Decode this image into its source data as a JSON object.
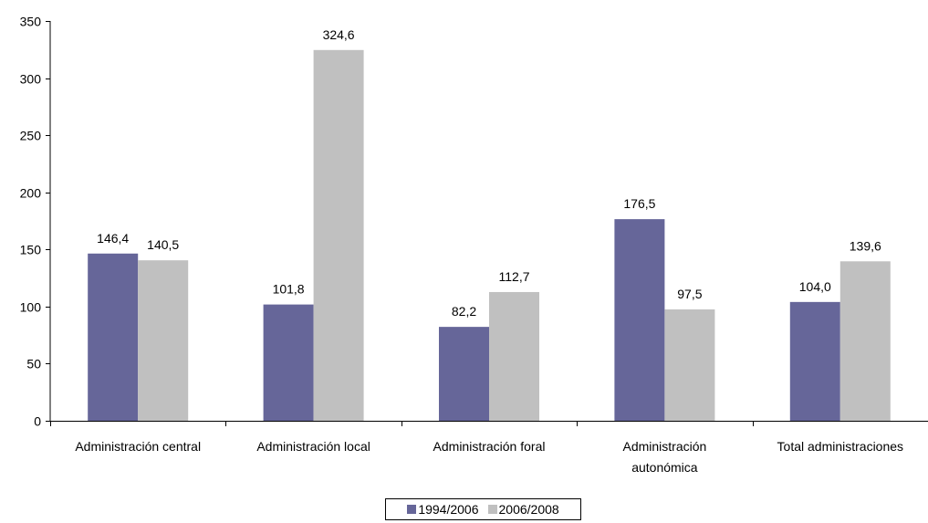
{
  "chart_data": {
    "type": "bar",
    "title": "",
    "xlabel": "",
    "ylabel": "",
    "ylim": [
      0,
      350
    ],
    "yticks": [
      0,
      50,
      100,
      150,
      200,
      250,
      300,
      350
    ],
    "grid": false,
    "legend_position": "bottom",
    "categories": [
      [
        "Administración central"
      ],
      [
        "Administración local"
      ],
      [
        "Administración foral"
      ],
      [
        "Administración",
        "autonómica"
      ],
      [
        "Total administraciones"
      ]
    ],
    "series": [
      {
        "name": "1994/2006",
        "color": "#666699",
        "values": [
          146.4,
          101.8,
          82.2,
          176.5,
          104.0
        ],
        "labels": [
          "146,4",
          "101,8",
          "82,2",
          "176,5",
          "104,0"
        ]
      },
      {
        "name": "2006/2008",
        "color": "#c0c0c0",
        "values": [
          140.5,
          324.6,
          112.7,
          97.5,
          139.6
        ],
        "labels": [
          "140,5",
          "324,6",
          "112,7",
          "97,5",
          "139,6"
        ]
      }
    ]
  }
}
